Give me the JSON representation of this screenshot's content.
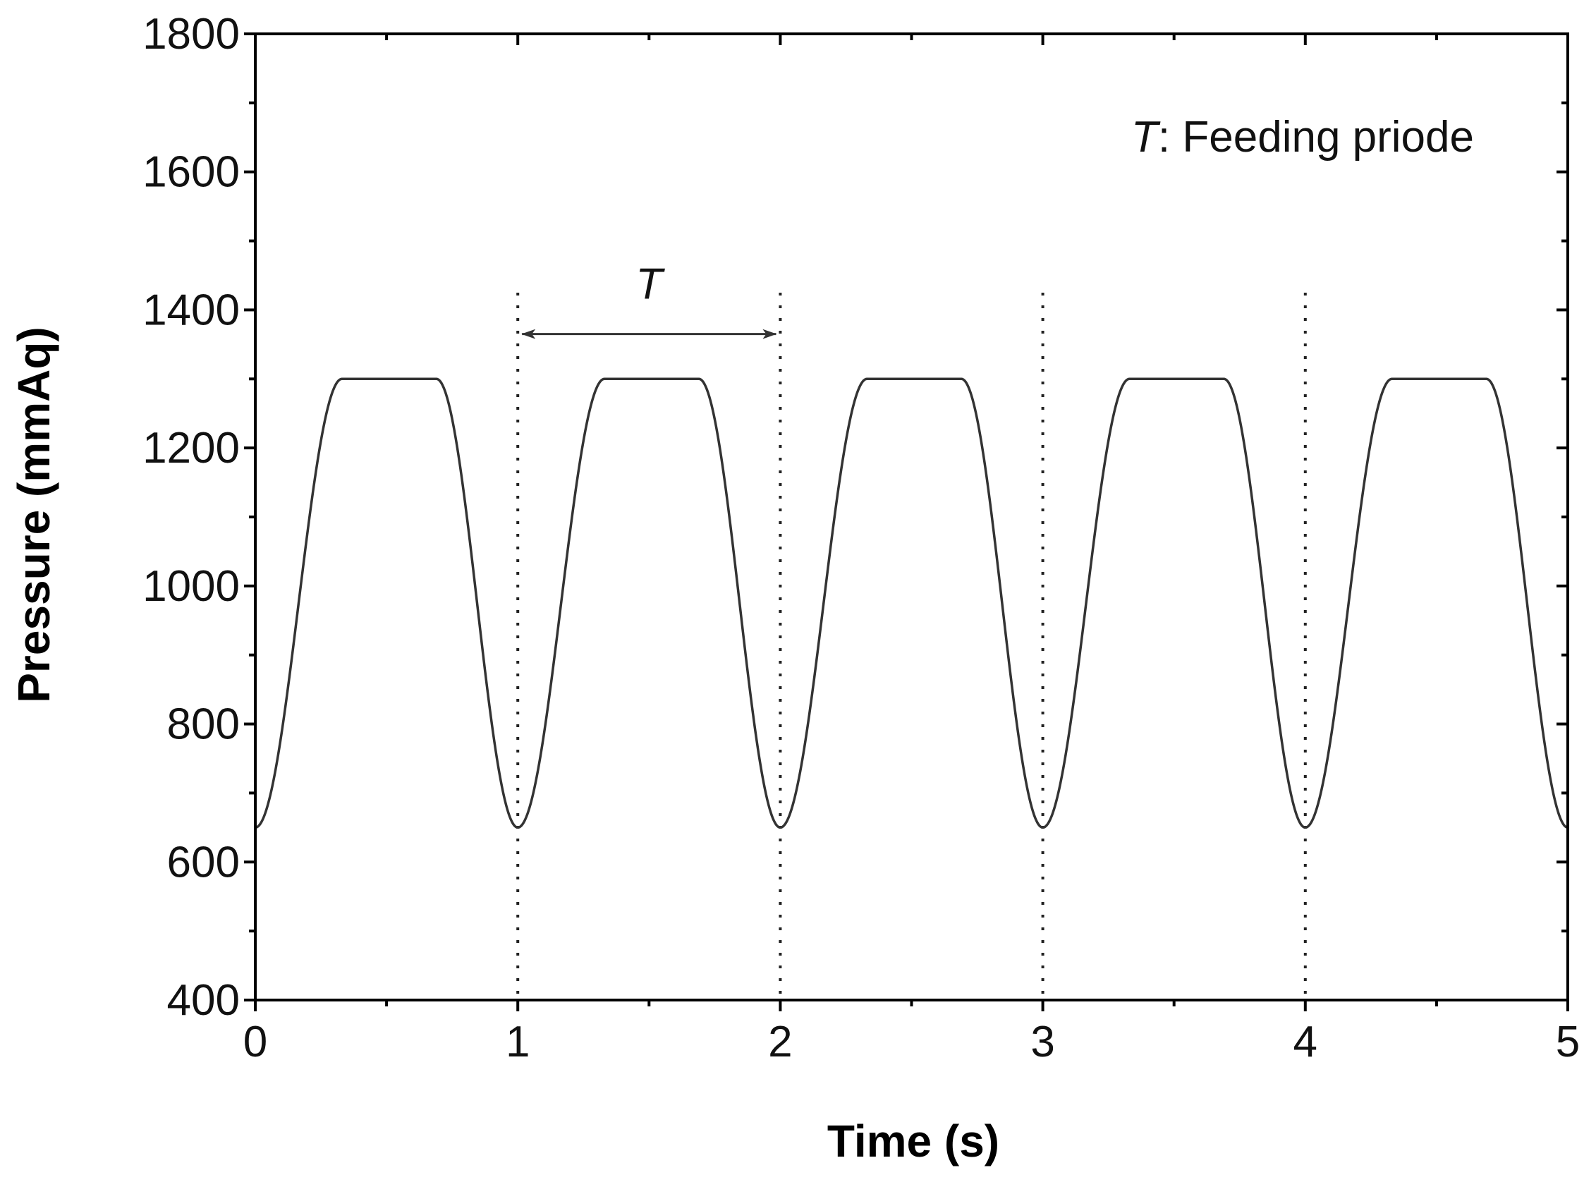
{
  "chart_data": {
    "type": "line",
    "title": "",
    "xlabel": "Time (s)",
    "ylabel": "Pressure (mmAq)",
    "xlim": [
      0,
      5
    ],
    "ylim": [
      400,
      1800
    ],
    "x_ticks": [
      0,
      1,
      2,
      3,
      4,
      5
    ],
    "x_tick_labels": [
      "0",
      "1",
      "2",
      "3",
      "4",
      "5"
    ],
    "y_ticks": [
      400,
      600,
      800,
      1000,
      1200,
      1400,
      1600,
      1800
    ],
    "y_tick_labels": [
      "400",
      "600",
      "800",
      "1000",
      "1200",
      "1400",
      "1600",
      "1800"
    ],
    "x_minor_step": 0.5,
    "y_minor_step": 100,
    "grid": false,
    "series": [
      {
        "name": "Pressure",
        "color": "#333333",
        "period": 1,
        "min": 650,
        "max": 1300,
        "plateau_start": 0.33,
        "plateau_end": 0.69,
        "x_range": [
          0,
          5
        ]
      }
    ],
    "vlines": {
      "x": [
        1,
        2,
        3,
        4
      ],
      "style": "dotted"
    },
    "period_marker": {
      "x_start": 1,
      "x_end": 2,
      "y": 1365,
      "label": "T"
    },
    "annotation": {
      "symbol": "T",
      "text": ": Feeding priode"
    }
  }
}
